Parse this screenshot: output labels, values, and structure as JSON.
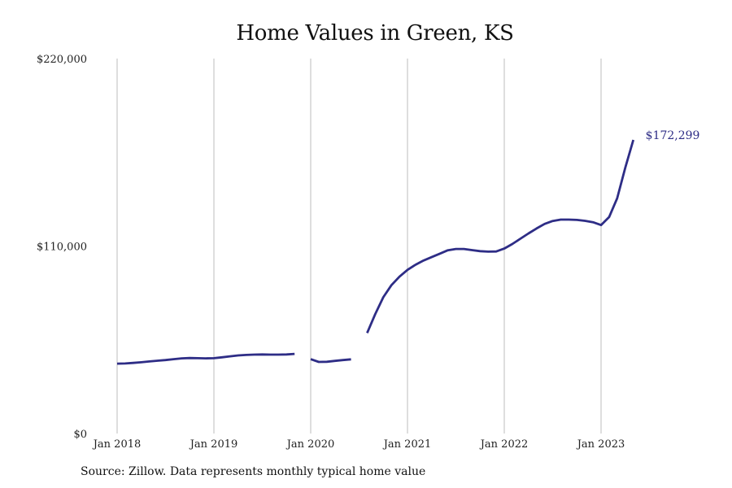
{
  "chart_data": {
    "type": "line",
    "title": "Home Values in Green, KS",
    "xlabel": "",
    "ylabel": "",
    "ylim": [
      0,
      220000
    ],
    "y_ticks": [
      {
        "value": 0,
        "label": "$0"
      },
      {
        "value": 110000,
        "label": "$110,000"
      },
      {
        "value": 220000,
        "label": "$220,000"
      }
    ],
    "x_ticks": [
      {
        "value": "2018-01",
        "label": "Jan 2018"
      },
      {
        "value": "2019-01",
        "label": "Jan 2019"
      },
      {
        "value": "2020-01",
        "label": "Jan 2020"
      },
      {
        "value": "2021-01",
        "label": "Jan 2021"
      },
      {
        "value": "2022-01",
        "label": "Jan 2022"
      },
      {
        "value": "2023-01",
        "label": "Jan 2023"
      }
    ],
    "grid": {
      "vertical": true,
      "horizontal": false
    },
    "color": "#2e2d86",
    "series": [
      {
        "segments": [
          [
            {
              "x": "2018-01",
              "y": 41000
            },
            {
              "x": "2018-02",
              "y": 41100
            },
            {
              "x": "2018-03",
              "y": 41400
            },
            {
              "x": "2018-04",
              "y": 41800
            },
            {
              "x": "2018-05",
              "y": 42300
            },
            {
              "x": "2018-06",
              "y": 42700
            },
            {
              "x": "2018-07",
              "y": 43100
            },
            {
              "x": "2018-08",
              "y": 43600
            },
            {
              "x": "2018-09",
              "y": 44100
            },
            {
              "x": "2018-10",
              "y": 44300
            },
            {
              "x": "2018-11",
              "y": 44200
            },
            {
              "x": "2018-12",
              "y": 44100
            },
            {
              "x": "2019-01",
              "y": 44200
            },
            {
              "x": "2019-02",
              "y": 44700
            },
            {
              "x": "2019-03",
              "y": 45300
            },
            {
              "x": "2019-04",
              "y": 45800
            },
            {
              "x": "2019-05",
              "y": 46100
            },
            {
              "x": "2019-06",
              "y": 46300
            },
            {
              "x": "2019-07",
              "y": 46400
            },
            {
              "x": "2019-08",
              "y": 46300
            },
            {
              "x": "2019-09",
              "y": 46300
            },
            {
              "x": "2019-10",
              "y": 46400
            },
            {
              "x": "2019-11",
              "y": 46700
            }
          ],
          [
            {
              "x": "2020-01",
              "y": 43600
            },
            {
              "x": "2020-02",
              "y": 42000
            },
            {
              "x": "2020-03",
              "y": 42100
            },
            {
              "x": "2020-04",
              "y": 42600
            },
            {
              "x": "2020-05",
              "y": 43100
            },
            {
              "x": "2020-06",
              "y": 43500
            }
          ],
          [
            {
              "x": "2020-08",
              "y": 59000
            },
            {
              "x": "2020-09",
              "y": 70000
            },
            {
              "x": "2020-10",
              "y": 80000
            },
            {
              "x": "2020-11",
              "y": 87000
            },
            {
              "x": "2020-12",
              "y": 92000
            },
            {
              "x": "2021-01",
              "y": 96000
            },
            {
              "x": "2021-02",
              "y": 99000
            },
            {
              "x": "2021-03",
              "y": 101500
            },
            {
              "x": "2021-04",
              "y": 103500
            },
            {
              "x": "2021-05",
              "y": 105500
            },
            {
              "x": "2021-06",
              "y": 107500
            },
            {
              "x": "2021-07",
              "y": 108300
            },
            {
              "x": "2021-08",
              "y": 108300
            },
            {
              "x": "2021-09",
              "y": 107600
            },
            {
              "x": "2021-10",
              "y": 107000
            },
            {
              "x": "2021-11",
              "y": 106700
            },
            {
              "x": "2021-12",
              "y": 106800
            },
            {
              "x": "2022-01",
              "y": 108500
            },
            {
              "x": "2022-02",
              "y": 111200
            },
            {
              "x": "2022-03",
              "y": 114300
            },
            {
              "x": "2022-04",
              "y": 117400
            },
            {
              "x": "2022-05",
              "y": 120300
            },
            {
              "x": "2022-06",
              "y": 123000
            },
            {
              "x": "2022-07",
              "y": 124700
            },
            {
              "x": "2022-08",
              "y": 125500
            },
            {
              "x": "2022-09",
              "y": 125500
            },
            {
              "x": "2022-10",
              "y": 125300
            },
            {
              "x": "2022-11",
              "y": 124800
            },
            {
              "x": "2022-12",
              "y": 124000
            },
            {
              "x": "2023-01",
              "y": 122300
            },
            {
              "x": "2023-02",
              "y": 127000
            },
            {
              "x": "2023-03",
              "y": 138000
            },
            {
              "x": "2023-04",
              "y": 156000
            },
            {
              "x": "2023-05",
              "y": 172299
            }
          ]
        ]
      }
    ],
    "annotations": [
      {
        "x": "2023-05",
        "y": 172299,
        "text": "$172,299"
      }
    ],
    "source_note": "Source: Zillow. Data represents monthly typical home value"
  }
}
